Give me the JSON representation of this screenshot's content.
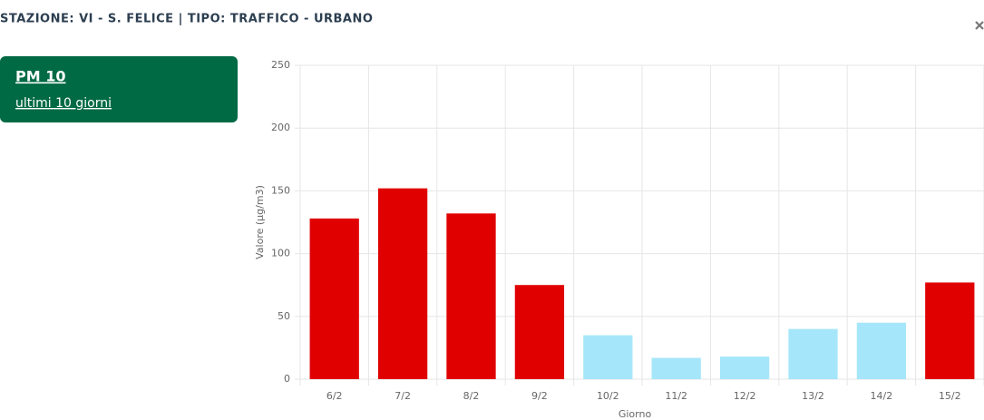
{
  "header": {
    "title": "STAZIONE: VI - S. FELICE | TIPO: TRAFFICO - URBANO"
  },
  "card": {
    "title": "PM 10",
    "subtitle": "ultimi 10 giorni"
  },
  "chart_data": {
    "type": "bar",
    "categories": [
      "6/2",
      "7/2",
      "8/2",
      "9/2",
      "10/2",
      "11/2",
      "12/2",
      "13/2",
      "14/2",
      "15/2"
    ],
    "values": [
      128,
      152,
      132,
      75,
      35,
      17,
      18,
      40,
      45,
      77
    ],
    "colors": [
      "#e00000",
      "#e00000",
      "#e00000",
      "#e00000",
      "#a6e6fa",
      "#a6e6fa",
      "#a6e6fa",
      "#a6e6fa",
      "#a6e6fa",
      "#e00000"
    ],
    "ylim": [
      0,
      250
    ],
    "yticks": [
      0,
      50,
      100,
      150,
      200,
      250
    ],
    "grid": true,
    "x_label": "Giorno",
    "y_label": "Valore (µg/m3)"
  }
}
